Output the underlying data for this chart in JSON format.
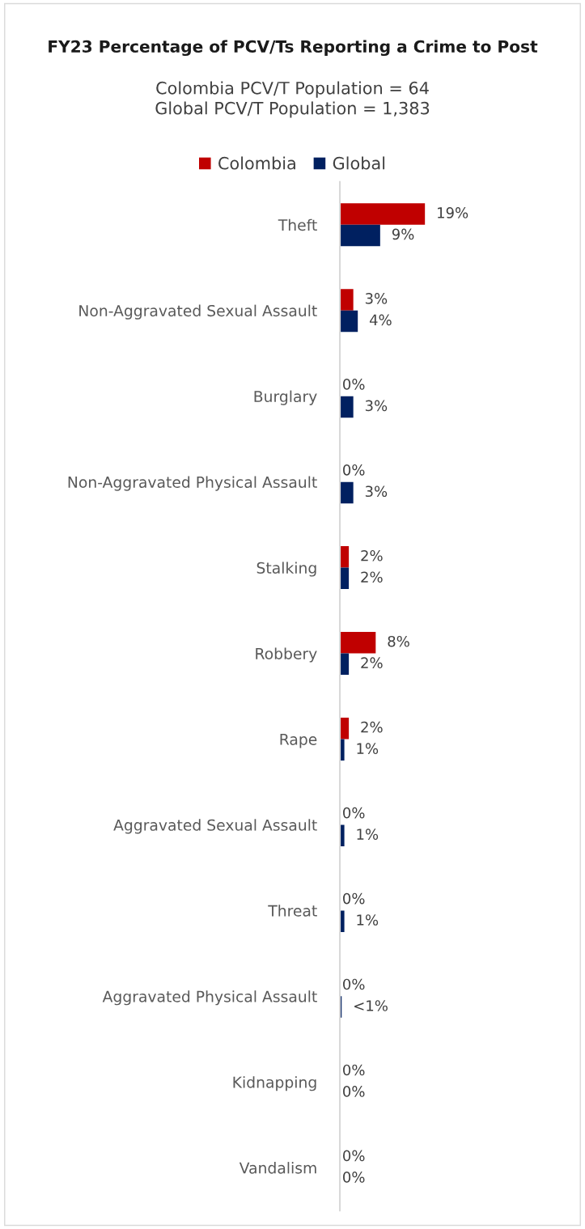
{
  "chart_data": {
    "type": "bar",
    "orientation": "horizontal",
    "title": "FY23 Percentage of PCV/Ts Reporting a Crime to Post",
    "subtitle": "Colombia PCV/T Population = 64\nGlobal PCV/T Population = 1,383",
    "categories": [
      "Theft",
      "Non-Aggravated Sexual Assault",
      "Burglary",
      "Non-Aggravated Physical Assault",
      "Stalking",
      "Robbery",
      "Rape",
      "Aggravated Sexual Assault",
      "Threat",
      "Aggravated Physical Assault",
      "Kidnapping",
      "Vandalism"
    ],
    "series": [
      {
        "name": "Colombia",
        "color": "#c00000",
        "values": [
          19,
          3,
          0,
          0,
          2,
          8,
          2,
          0,
          0,
          0,
          0,
          0
        ],
        "value_labels": [
          "19%",
          "3%",
          "0%",
          "0%",
          "2%",
          "8%",
          "2%",
          "0%",
          "0%",
          "0%",
          "0%",
          "0%"
        ]
      },
      {
        "name": "Global",
        "color": "#002060",
        "values": [
          9,
          4,
          3,
          3,
          2,
          2,
          1,
          1,
          1,
          0.4,
          0,
          0
        ],
        "value_labels": [
          "9%",
          "4%",
          "3%",
          "3%",
          "2%",
          "2%",
          "1%",
          "1%",
          "1%",
          "<1%",
          "0%",
          "0%"
        ]
      }
    ],
    "legend": "top",
    "grid": false,
    "tick_labels": "y"
  }
}
